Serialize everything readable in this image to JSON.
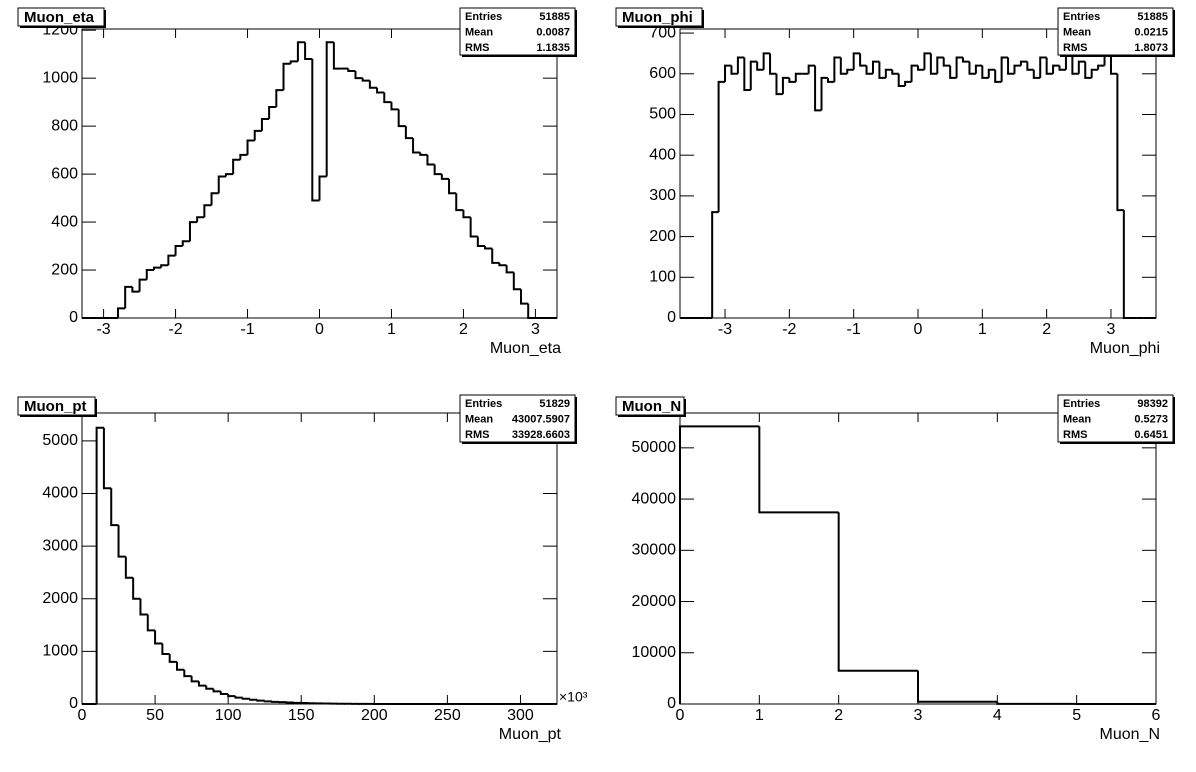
{
  "chart_data": [
    {
      "type": "histogram",
      "title": "Muon_eta",
      "xlabel": "Muon_eta",
      "color": "#000000",
      "bins": [
        -3.3,
        -3.2,
        -3.1,
        -3.0,
        -2.9,
        -2.8,
        -2.7,
        -2.6,
        -2.5,
        -2.4,
        -2.3,
        -2.2,
        -2.1,
        -2.0,
        -1.9,
        -1.8,
        -1.7,
        -1.6,
        -1.5,
        -1.4,
        -1.3,
        -1.2,
        -1.1,
        -1.0,
        -0.9,
        -0.8,
        -0.7,
        -0.6,
        -0.5,
        -0.4,
        -0.3,
        -0.2,
        -0.1,
        0,
        0.1,
        0.2,
        0.3,
        0.4,
        0.5,
        0.6,
        0.7,
        0.8,
        0.9,
        1.0,
        1.1,
        1.2,
        1.3,
        1.4,
        1.5,
        1.6,
        1.7,
        1.8,
        1.9,
        2.0,
        2.1,
        2.2,
        2.3,
        2.4,
        2.5,
        2.6,
        2.7,
        2.8,
        2.9,
        3.0,
        3.1,
        3.2,
        3.3
      ],
      "values": [
        0,
        0,
        0,
        0,
        0,
        40,
        130,
        110,
        160,
        200,
        210,
        220,
        260,
        300,
        320,
        400,
        420,
        470,
        520,
        590,
        600,
        660,
        680,
        740,
        780,
        830,
        880,
        950,
        1060,
        1070,
        1150,
        1080,
        490,
        590,
        1150,
        1040,
        1040,
        1030,
        1000,
        990,
        960,
        940,
        900,
        870,
        800,
        750,
        690,
        680,
        640,
        600,
        580,
        520,
        450,
        420,
        340,
        300,
        290,
        230,
        220,
        190,
        120,
        60,
        0,
        0,
        0,
        0
      ],
      "xlim": [
        -3.3,
        3.3
      ],
      "xticks": [
        -3,
        -2,
        -1,
        0,
        1,
        2,
        3
      ],
      "ylim": [
        0,
        1205
      ],
      "yticks": [
        0,
        200,
        400,
        600,
        800,
        1000,
        1200
      ],
      "stats": {
        "labels": [
          "Entries",
          "Mean",
          "RMS"
        ],
        "values": [
          51885,
          0.0087,
          1.1835
        ]
      }
    },
    {
      "type": "histogram",
      "title": "Muon_phi",
      "xlabel": "Muon_phi",
      "color": "#000000",
      "bins": [
        -3.7,
        -3.6,
        -3.5,
        -3.4,
        -3.3,
        -3.2,
        -3.1,
        -3.0,
        -2.9,
        -2.8,
        -2.7,
        -2.6,
        -2.5,
        -2.4,
        -2.3,
        -2.2,
        -2.1,
        -2.0,
        -1.9,
        -1.8,
        -1.7,
        -1.6,
        -1.5,
        -1.4,
        -1.3,
        -1.2,
        -1.1,
        -1.0,
        -0.9,
        -0.8,
        -0.7,
        -0.6,
        -0.5,
        -0.4,
        -0.3,
        -0.2,
        -0.1,
        0,
        0.1,
        0.2,
        0.3,
        0.4,
        0.5,
        0.6,
        0.7,
        0.8,
        0.9,
        1.0,
        1.1,
        1.2,
        1.3,
        1.4,
        1.5,
        1.6,
        1.7,
        1.8,
        1.9,
        2.0,
        2.1,
        2.2,
        2.3,
        2.4,
        2.5,
        2.6,
        2.7,
        2.8,
        2.9,
        3.0,
        3.1,
        3.2,
        3.3,
        3.4,
        3.5,
        3.6,
        3.7
      ],
      "values": [
        0,
        0,
        0,
        0,
        0,
        260,
        580,
        620,
        600,
        640,
        560,
        630,
        610,
        650,
        600,
        550,
        590,
        580,
        600,
        600,
        620,
        510,
        590,
        580,
        640,
        600,
        610,
        650,
        620,
        600,
        630,
        590,
        610,
        600,
        570,
        580,
        620,
        610,
        650,
        600,
        640,
        620,
        590,
        640,
        630,
        600,
        620,
        590,
        610,
        580,
        640,
        600,
        620,
        630,
        610,
        590,
        640,
        600,
        620,
        610,
        650,
        600,
        630,
        590,
        610,
        620,
        660,
        600,
        265,
        0,
        0,
        0,
        0,
        0
      ],
      "xlim": [
        -3.7,
        3.7
      ],
      "xticks": [
        -3,
        -2,
        -1,
        0,
        1,
        2,
        3
      ],
      "ylim": [
        0,
        710
      ],
      "yticks": [
        0,
        100,
        200,
        300,
        400,
        500,
        600,
        700
      ],
      "stats": {
        "labels": [
          "Entries",
          "Mean",
          "RMS"
        ],
        "values": [
          51885,
          0.0215,
          1.8073
        ]
      }
    },
    {
      "type": "histogram",
      "title": "Muon_pt",
      "xlabel": "Muon_pt",
      "x_multiplier": "×10³",
      "color": "#000000",
      "bins": [
        0,
        5,
        10,
        15,
        20,
        25,
        30,
        35,
        40,
        45,
        50,
        55,
        60,
        65,
        70,
        75,
        80,
        85,
        90,
        95,
        100,
        105,
        110,
        115,
        120,
        125,
        130,
        135,
        140,
        145,
        150,
        155,
        160,
        165,
        170,
        175,
        180,
        185,
        190,
        195,
        200,
        205,
        210,
        215,
        220,
        225,
        230,
        235,
        240,
        245,
        250,
        255,
        260,
        265,
        270,
        275,
        280,
        285,
        290,
        295,
        300,
        305,
        310,
        315,
        320,
        325
      ],
      "values": [
        0,
        0,
        5250,
        4100,
        3400,
        2800,
        2400,
        2000,
        1700,
        1400,
        1150,
        950,
        800,
        650,
        530,
        430,
        350,
        290,
        240,
        190,
        150,
        120,
        100,
        80,
        65,
        50,
        40,
        35,
        28,
        22,
        18,
        14,
        11,
        9,
        7,
        5,
        4,
        3,
        2,
        2,
        1,
        0,
        0,
        0,
        0,
        0,
        0,
        0,
        0,
        0,
        0,
        0,
        0,
        0,
        0,
        0,
        0,
        0,
        0,
        0,
        0,
        0,
        0,
        0,
        0
      ],
      "xlim": [
        0,
        325
      ],
      "xticks": [
        0,
        50,
        100,
        150,
        200,
        250,
        300
      ],
      "ylim": [
        0,
        5530
      ],
      "yticks": [
        0,
        1000,
        2000,
        3000,
        4000,
        5000
      ],
      "stats": {
        "labels": [
          "Entries",
          "Mean",
          "RMS"
        ],
        "values": [
          51829,
          43007.5907,
          33928.6603
        ]
      }
    },
    {
      "type": "histogram",
      "title": "Muon_N",
      "xlabel": "Muon_N",
      "color": "#000000",
      "bins": [
        0,
        1,
        2,
        3,
        4,
        5,
        6
      ],
      "values": [
        54200,
        37400,
        6500,
        450,
        30,
        0
      ],
      "xlim": [
        0,
        6
      ],
      "xticks": [
        0,
        1,
        2,
        3,
        4,
        5,
        6
      ],
      "ylim": [
        0,
        56800
      ],
      "yticks": [
        0,
        10000,
        20000,
        30000,
        40000,
        50000
      ],
      "stats": {
        "labels": [
          "Entries",
          "Mean",
          "RMS"
        ],
        "values": [
          98392,
          0.5273,
          0.6451
        ]
      }
    }
  ]
}
